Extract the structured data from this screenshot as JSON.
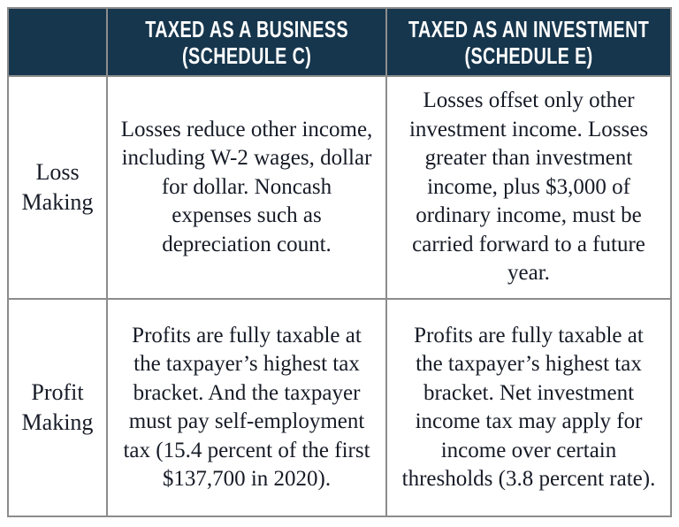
{
  "colors": {
    "header_bg": "#16364d",
    "header_text": "#ffffff",
    "body_text": "#161b26",
    "border": "#8c8c8c",
    "background": "#ffffff"
  },
  "table": {
    "headers": [
      {
        "line1": "TAXED AS A BUSINESS",
        "line2": "(SCHEDULE C)"
      },
      {
        "line1": "TAXED AS AN INVESTMENT",
        "line2": "(SCHEDULE E)"
      }
    ],
    "rows": [
      {
        "label": "Loss Making",
        "business": "Losses reduce other income, including W-2 wages, dollar for dollar. Noncash expenses such as depreciation count.",
        "investment": "Losses offset only other investment income. Losses greater than investment income, plus $3,000 of ordinary income, must be carried forward to a future year."
      },
      {
        "label": "Profit Making",
        "business": "Profits are fully taxable at the taxpayer’s highest tax bracket. And the taxpayer must pay self-employment tax (15.4 percent of the first $137,700 in 2020).",
        "investment": "Profits are fully taxable at the taxpayer’s highest tax bracket. Net investment income tax may apply for income over certain thresholds (3.8 percent rate)."
      }
    ]
  }
}
